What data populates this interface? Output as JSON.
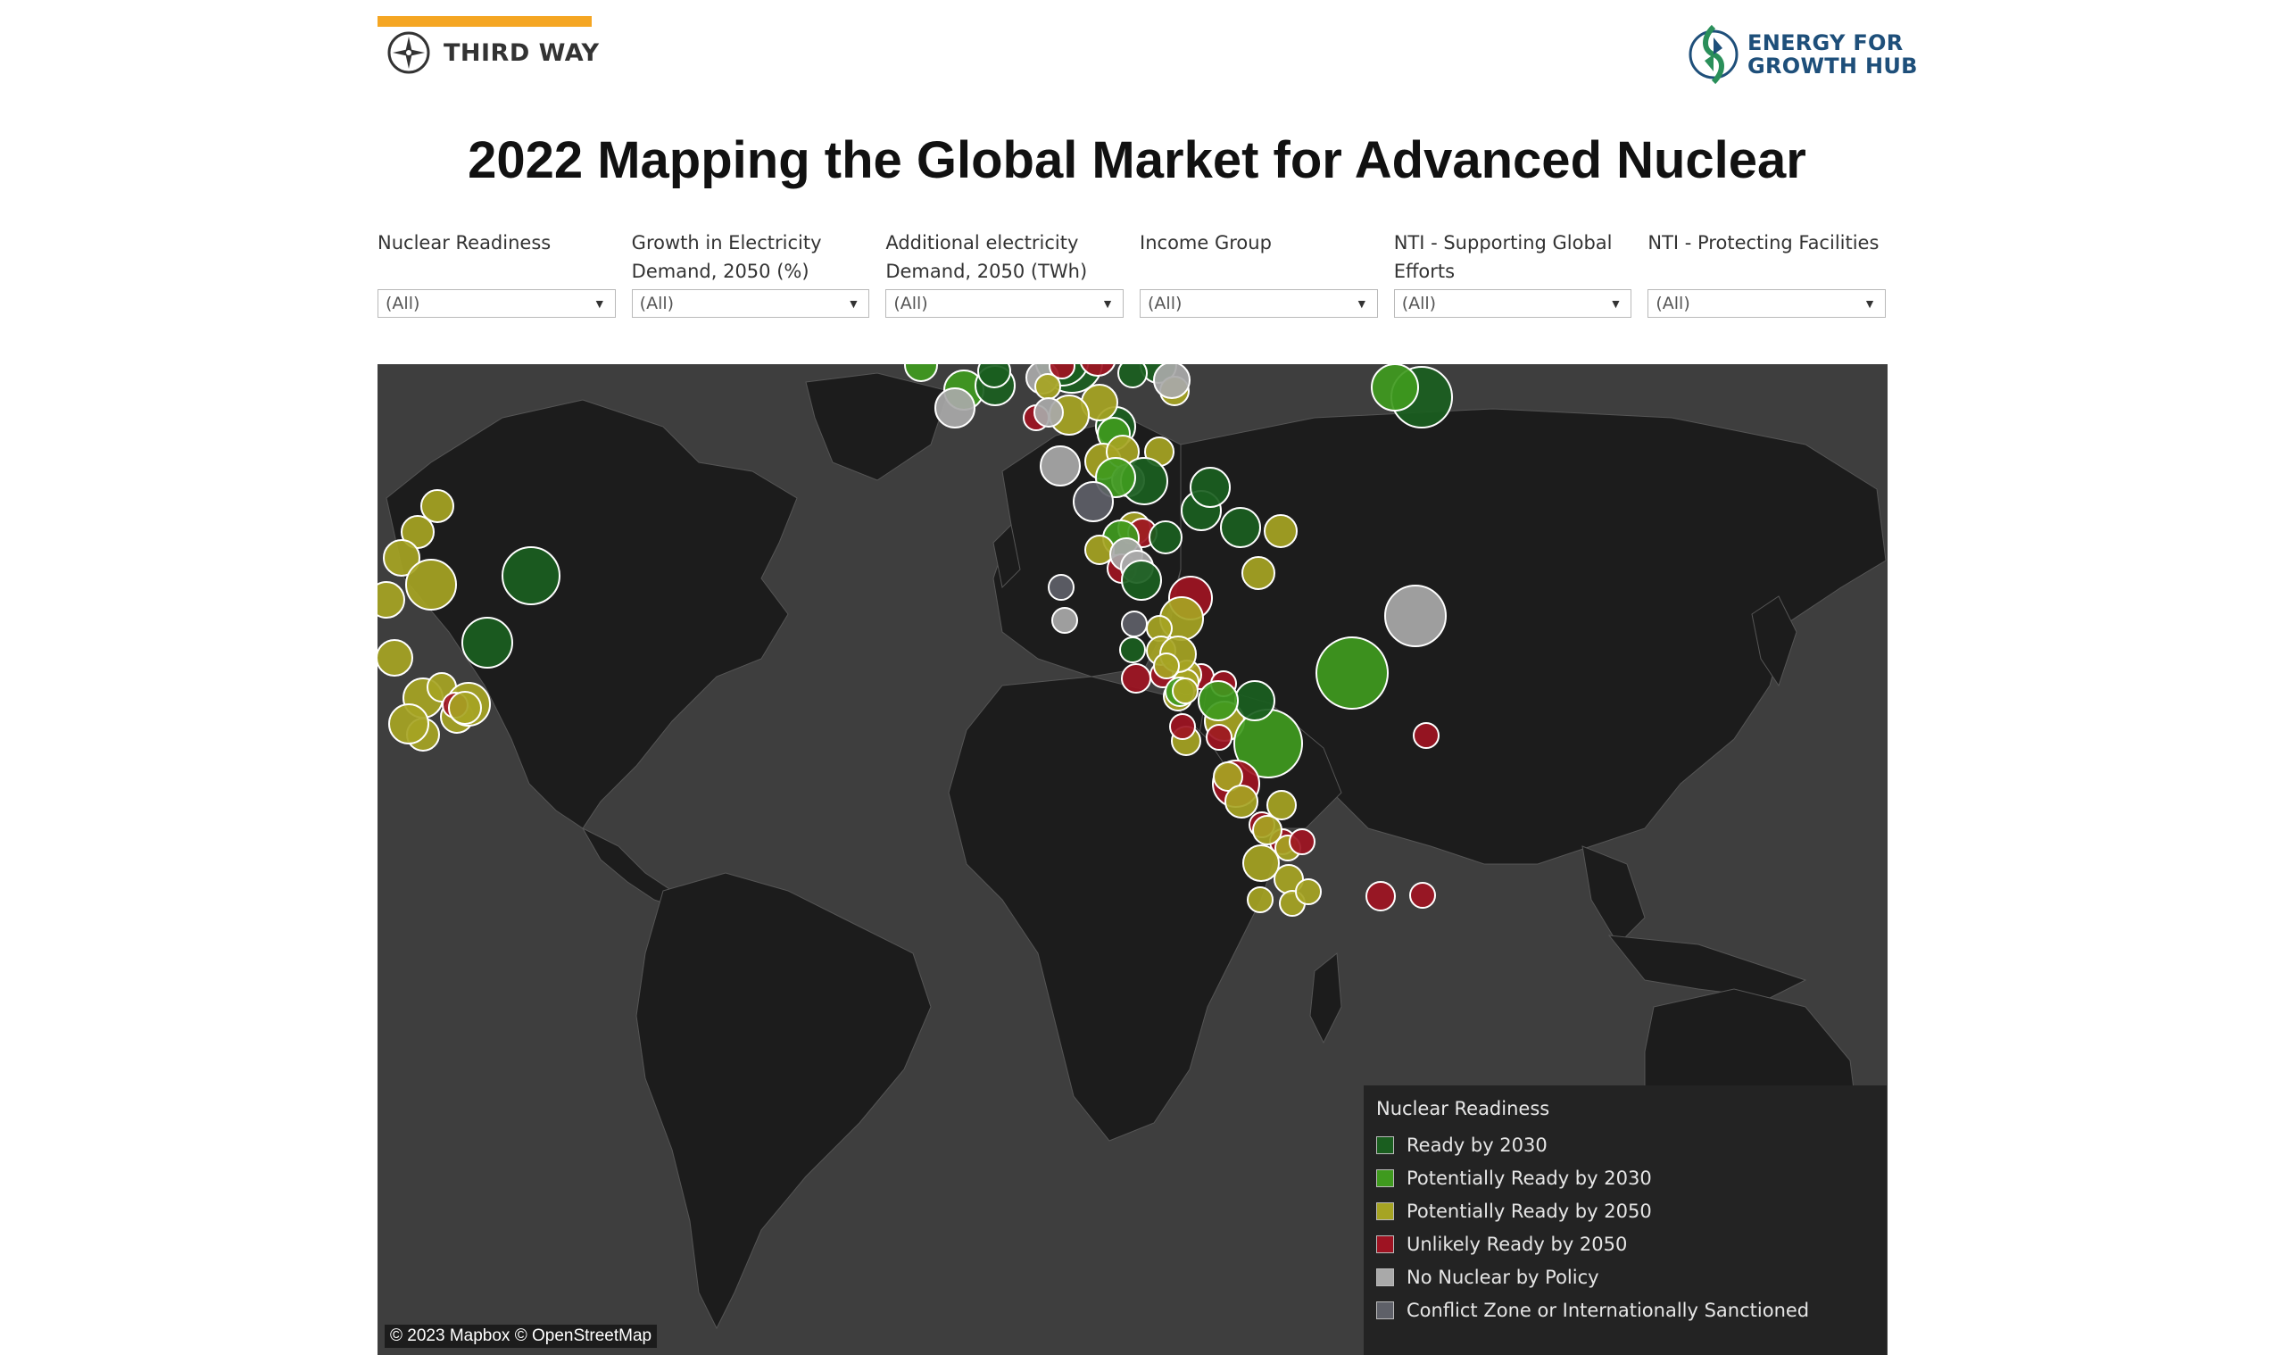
{
  "header": {
    "brand_left": "THIRD WAY",
    "brand_right_line1": "ENERGY FOR",
    "brand_right_line2": "GROWTH HUB",
    "accent_color": "#f5a623",
    "brand_right_color": "#1e4f7a",
    "title": "2022 Mapping the Global Market for Advanced Nuclear"
  },
  "filters": [
    {
      "label": "Nuclear Readiness",
      "value": "(All)"
    },
    {
      "label": "Growth in Electricity Demand, 2050 (%)",
      "value": "(All)"
    },
    {
      "label": "Additional electricity Demand, 2050 (TWh)",
      "value": "(All)"
    },
    {
      "label": "Income Group",
      "value": "(All)"
    },
    {
      "label": "NTI - Supporting Global Efforts",
      "value": "(All)"
    },
    {
      "label": "NTI - Protecting Facilities",
      "value": "(All)"
    }
  ],
  "map": {
    "attribution": "© 2023 Mapbox  © OpenStreetMap",
    "background_color": "#3e3e3e",
    "land_color": "#1c1c1c",
    "legend": {
      "title": "Nuclear Readiness",
      "items": [
        {
          "key": "r2030",
          "label": "Ready by 2030",
          "color": "#1a5e1f"
        },
        {
          "key": "p2030",
          "label": "Potentially Ready by 2030",
          "color": "#3f9a1e"
        },
        {
          "key": "p2050",
          "label": "Potentially Ready by 2050",
          "color": "#a6a423"
        },
        {
          "key": "u2050",
          "label": "Unlikely Ready by 2050",
          "color": "#9e1322"
        },
        {
          "key": "nopolicy",
          "label": "No Nuclear by Policy",
          "color": "#a9a9a9"
        },
        {
          "key": "conflict",
          "label": "Conflict Zone or Internationally Sanctioned",
          "color": "#5e6068"
        }
      ]
    }
  }
}
